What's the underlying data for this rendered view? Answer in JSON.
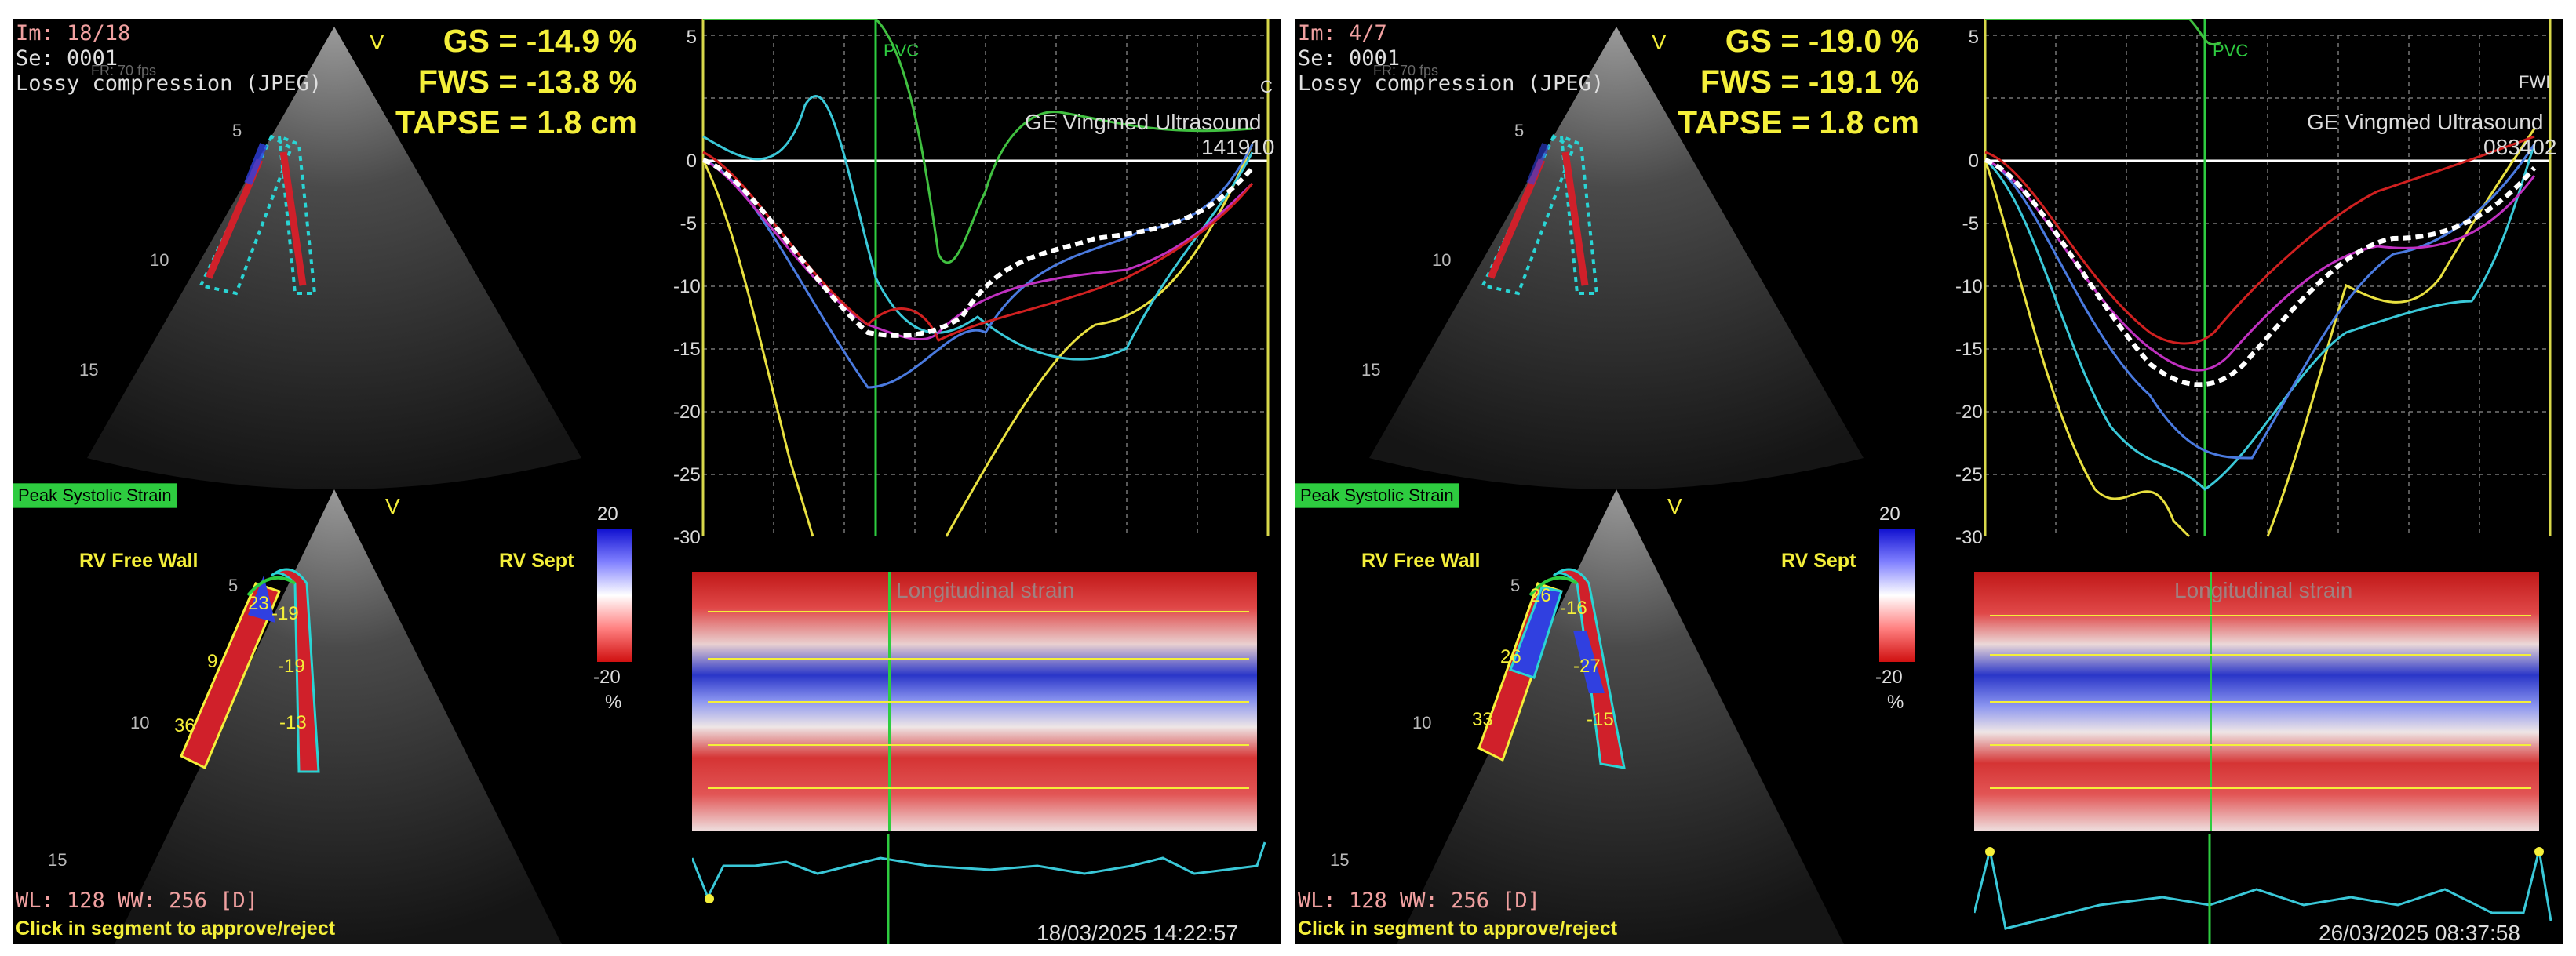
{
  "panels": [
    {
      "header": {
        "image_count": "Im: 18/18",
        "series": "Se: 0001",
        "compression": "Lossy compression (JPEG)",
        "frame_rate": "FR: 70 fps"
      },
      "metrics": {
        "gs": "GS = -14.9 %",
        "fws": "FWS = -13.8 %",
        "tapse": "TAPSE = 1.8 cm"
      },
      "vendor": "GE Vingmed Ultrasound",
      "vendor_id": "141910",
      "legend_marker": "C",
      "pvc_label": "PVC",
      "peak_button": "Peak Systolic Strain",
      "free_wall_label": "RV Free Wall",
      "septum_label": "RV Sept",
      "scale": {
        "top": "20",
        "bottom": "-20",
        "unit": "%"
      },
      "heatmap_title": "Longitudinal strain",
      "depth_marks": [
        "5",
        "10",
        "15"
      ],
      "lower_depth_marks": [
        "5",
        "10",
        "15"
      ],
      "apex_label": "V",
      "segment_values": [
        "23",
        "9",
        "36",
        "-19",
        "-19",
        "-13"
      ],
      "window_level": "WL: 128  WW: 256 [D]",
      "instruction": "Click in segment to approve/reject",
      "timestamp": "18/03/2025 14:22:57"
    },
    {
      "header": {
        "image_count": "Im: 4/7",
        "series": "Se: 0001",
        "compression": "Lossy compression (JPEG)",
        "frame_rate": "FR: 70 fps"
      },
      "metrics": {
        "gs": "GS = -19.0 %",
        "fws": "FWS = -19.1 %",
        "tapse": "TAPSE = 1.8 cm"
      },
      "vendor": "GE Vingmed Ultrasound",
      "vendor_id": "083402",
      "legend_marker": "FWI",
      "pvc_label": "PVC",
      "peak_button": "Peak Systolic Strain",
      "free_wall_label": "RV Free Wall",
      "septum_label": "RV Sept",
      "scale": {
        "top": "20",
        "bottom": "-20",
        "unit": "%"
      },
      "heatmap_title": "Longitudinal strain",
      "depth_marks": [
        "5",
        "10",
        "15"
      ],
      "lower_depth_marks": [
        "5",
        "10",
        "15"
      ],
      "apex_label": "V",
      "segment_values": [
        "26",
        "26",
        "33",
        "-16",
        "-27",
        "-15"
      ],
      "window_level": "WL: 128  WW: 256 [D]",
      "instruction": "Click in segment to approve/reject",
      "timestamp": "26/03/2025 08:37:58"
    }
  ],
  "y_ticks": [
    "5",
    "0",
    "-5",
    "-10",
    "-15",
    "-20",
    "-25",
    "-30"
  ],
  "colors": {
    "text_yellow": "#f4ef3a",
    "peak_button": "#2ecc40",
    "strain_red": "#d0202a",
    "strain_blue": "#2030d0"
  }
}
